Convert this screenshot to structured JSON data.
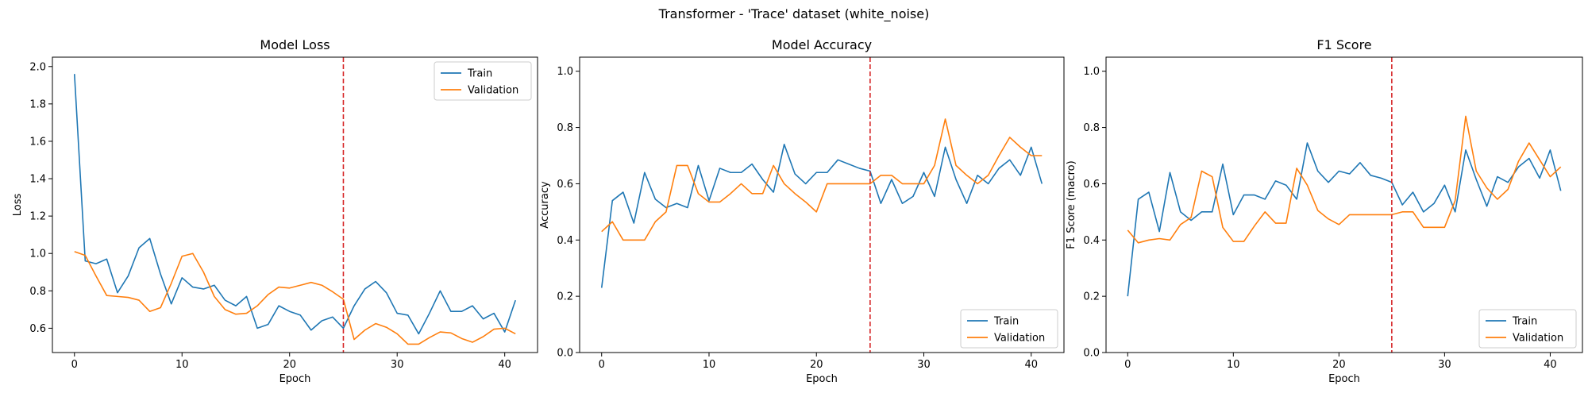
{
  "figure": {
    "suptitle": "Transformer - 'Trace' dataset (white_noise)"
  },
  "colors": {
    "train": "#1f77b4",
    "validation": "#ff7f0e",
    "marker_line": "#d62728"
  },
  "chart_data": [
    {
      "type": "line",
      "title": "Model Loss",
      "xlabel": "Epoch",
      "ylabel": "Loss",
      "xlim": [
        -2.05,
        43.05
      ],
      "ylim": [
        0.47,
        2.05
      ],
      "xticks": [
        0,
        10,
        20,
        30,
        40
      ],
      "yticks": [
        0.6,
        0.8,
        1.0,
        1.2,
        1.4,
        1.6,
        1.8,
        2.0
      ],
      "ytick_labels": [
        "0.6",
        "0.8",
        "1.0",
        "1.2",
        "1.4",
        "1.6",
        "1.8",
        "2.0"
      ],
      "grid": false,
      "legend_position": "top-right",
      "vline_x": 25,
      "x": [
        0,
        1,
        2,
        3,
        4,
        5,
        6,
        7,
        8,
        9,
        10,
        11,
        12,
        13,
        14,
        15,
        16,
        17,
        18,
        19,
        20,
        21,
        22,
        23,
        24,
        25,
        26,
        27,
        28,
        29,
        30,
        31,
        32,
        33,
        34,
        35,
        36,
        37,
        38,
        39,
        40,
        41
      ],
      "series": [
        {
          "name": "Train",
          "values": [
            1.96,
            0.96,
            0.945,
            0.97,
            0.79,
            0.88,
            1.03,
            1.08,
            0.89,
            0.73,
            0.87,
            0.82,
            0.81,
            0.83,
            0.75,
            0.72,
            0.77,
            0.6,
            0.62,
            0.72,
            0.69,
            0.67,
            0.59,
            0.64,
            0.66,
            0.6,
            0.72,
            0.81,
            0.85,
            0.79,
            0.68,
            0.67,
            0.57,
            0.68,
            0.8,
            0.69,
            0.69,
            0.72,
            0.65,
            0.68,
            0.58,
            0.75
          ]
        },
        {
          "name": "Validation",
          "values": [
            1.01,
            0.99,
            0.88,
            0.775,
            0.77,
            0.765,
            0.75,
            0.69,
            0.71,
            0.84,
            0.985,
            1.0,
            0.9,
            0.77,
            0.7,
            0.675,
            0.68,
            0.72,
            0.78,
            0.82,
            0.815,
            0.83,
            0.845,
            0.83,
            0.795,
            0.755,
            0.54,
            0.59,
            0.625,
            0.605,
            0.57,
            0.515,
            0.515,
            0.55,
            0.58,
            0.575,
            0.545,
            0.525,
            0.555,
            0.595,
            0.6,
            0.57
          ]
        }
      ]
    },
    {
      "type": "line",
      "title": "Model Accuracy",
      "xlabel": "Epoch",
      "ylabel": "Accuracy",
      "xlim": [
        -2.05,
        43.05
      ],
      "ylim": [
        0.0,
        1.05
      ],
      "xticks": [
        0,
        10,
        20,
        30,
        40
      ],
      "yticks": [
        0.0,
        0.2,
        0.4,
        0.6,
        0.8,
        1.0
      ],
      "ytick_labels": [
        "0.0",
        "0.2",
        "0.4",
        "0.6",
        "0.8",
        "1.0"
      ],
      "grid": false,
      "legend_position": "bottom-right",
      "vline_x": 25,
      "x": [
        0,
        1,
        2,
        3,
        4,
        5,
        6,
        7,
        8,
        9,
        10,
        11,
        12,
        13,
        14,
        15,
        16,
        17,
        18,
        19,
        20,
        21,
        22,
        23,
        24,
        25,
        26,
        27,
        28,
        29,
        30,
        31,
        32,
        33,
        34,
        35,
        36,
        37,
        38,
        39,
        40,
        41
      ],
      "series": [
        {
          "name": "Train",
          "values": [
            0.23,
            0.54,
            0.57,
            0.46,
            0.64,
            0.545,
            0.515,
            0.53,
            0.515,
            0.665,
            0.54,
            0.655,
            0.64,
            0.64,
            0.67,
            0.615,
            0.57,
            0.74,
            0.635,
            0.6,
            0.64,
            0.64,
            0.685,
            0.67,
            0.655,
            0.645,
            0.53,
            0.615,
            0.53,
            0.555,
            0.64,
            0.555,
            0.73,
            0.615,
            0.53,
            0.63,
            0.6,
            0.655,
            0.685,
            0.63,
            0.73,
            0.6
          ]
        },
        {
          "name": "Validation",
          "values": [
            0.43,
            0.465,
            0.4,
            0.4,
            0.4,
            0.465,
            0.5,
            0.665,
            0.665,
            0.565,
            0.535,
            0.535,
            0.565,
            0.6,
            0.565,
            0.565,
            0.665,
            0.6,
            0.565,
            0.535,
            0.5,
            0.6,
            0.6,
            0.6,
            0.6,
            0.6,
            0.63,
            0.63,
            0.6,
            0.6,
            0.6,
            0.665,
            0.83,
            0.665,
            0.63,
            0.6,
            0.63,
            0.7,
            0.765,
            0.73,
            0.7,
            0.7
          ]
        }
      ]
    },
    {
      "type": "line",
      "title": "F1 Score",
      "xlabel": "Epoch",
      "ylabel": "F1 Score (macro)",
      "xlim": [
        -2.05,
        43.05
      ],
      "ylim": [
        0.0,
        1.05
      ],
      "xticks": [
        0,
        10,
        20,
        30,
        40
      ],
      "yticks": [
        0.0,
        0.2,
        0.4,
        0.6,
        0.8,
        1.0
      ],
      "ytick_labels": [
        "0.0",
        "0.2",
        "0.4",
        "0.6",
        "0.8",
        "1.0"
      ],
      "grid": false,
      "legend_position": "bottom-right",
      "vline_x": 25,
      "x": [
        0,
        1,
        2,
        3,
        4,
        5,
        6,
        7,
        8,
        9,
        10,
        11,
        12,
        13,
        14,
        15,
        16,
        17,
        18,
        19,
        20,
        21,
        22,
        23,
        24,
        25,
        26,
        27,
        28,
        29,
        30,
        31,
        32,
        33,
        34,
        35,
        36,
        37,
        38,
        39,
        40,
        41
      ],
      "series": [
        {
          "name": "Train",
          "values": [
            0.2,
            0.545,
            0.57,
            0.43,
            0.64,
            0.5,
            0.47,
            0.5,
            0.5,
            0.67,
            0.49,
            0.56,
            0.56,
            0.545,
            0.61,
            0.595,
            0.545,
            0.745,
            0.645,
            0.605,
            0.645,
            0.635,
            0.675,
            0.63,
            0.62,
            0.605,
            0.525,
            0.57,
            0.5,
            0.53,
            0.595,
            0.5,
            0.72,
            0.615,
            0.52,
            0.625,
            0.605,
            0.66,
            0.69,
            0.62,
            0.72,
            0.575
          ]
        },
        {
          "name": "Validation",
          "values": [
            0.435,
            0.39,
            0.4,
            0.405,
            0.4,
            0.455,
            0.48,
            0.645,
            0.625,
            0.445,
            0.395,
            0.395,
            0.45,
            0.5,
            0.46,
            0.46,
            0.655,
            0.595,
            0.505,
            0.475,
            0.455,
            0.49,
            0.49,
            0.49,
            0.49,
            0.49,
            0.5,
            0.5,
            0.445,
            0.445,
            0.445,
            0.54,
            0.84,
            0.645,
            0.585,
            0.545,
            0.58,
            0.68,
            0.745,
            0.685,
            0.625,
            0.66
          ]
        }
      ]
    }
  ]
}
